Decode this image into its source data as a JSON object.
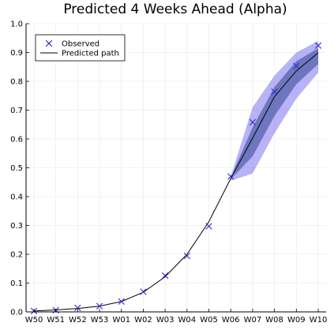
{
  "chart_data": {
    "type": "line",
    "title": "Predicted 4 Weeks Ahead (Alpha)",
    "xlabel": "",
    "ylabel": "",
    "categories": [
      "W50",
      "W51",
      "W52",
      "W53",
      "W01",
      "W02",
      "W03",
      "W04",
      "W05",
      "W06",
      "W07",
      "W08",
      "W09",
      "W10"
    ],
    "ylim": [
      0,
      1
    ],
    "yticks": [
      "0.0",
      "0.1",
      "0.2",
      "0.3",
      "0.4",
      "0.5",
      "0.6",
      "0.7",
      "0.8",
      "0.9",
      "1.0"
    ],
    "grid": true,
    "legend_position": "top-left",
    "series": [
      {
        "name": "Observed",
        "kind": "scatter",
        "marker": "x",
        "color": "#2b2bd6",
        "values": [
          0.003,
          0.006,
          0.014,
          0.02,
          0.036,
          0.07,
          0.126,
          0.194,
          0.297,
          0.47,
          0.658,
          0.764,
          0.853,
          0.924
        ]
      },
      {
        "name": "Predicted path",
        "kind": "line",
        "color": "#000000",
        "values": [
          0.003,
          0.007,
          0.012,
          0.02,
          0.036,
          0.068,
          0.122,
          0.2,
          0.313,
          0.463,
          0.603,
          0.747,
          0.836,
          0.899
        ]
      }
    ],
    "bands": [
      {
        "level": "outer",
        "color": "#7d72f0",
        "opacity": 0.55,
        "x_start_index": 9,
        "lower": [
          0.455,
          0.48,
          0.62,
          0.74,
          0.83
        ],
        "upper": [
          0.47,
          0.71,
          0.82,
          0.9,
          0.94
        ]
      },
      {
        "level": "inner",
        "color": "#4d5da6",
        "opacity": 0.7,
        "x_start_index": 9,
        "lower": [
          0.46,
          0.54,
          0.68,
          0.79,
          0.86
        ],
        "upper": [
          0.466,
          0.64,
          0.78,
          0.87,
          0.915
        ]
      }
    ]
  }
}
